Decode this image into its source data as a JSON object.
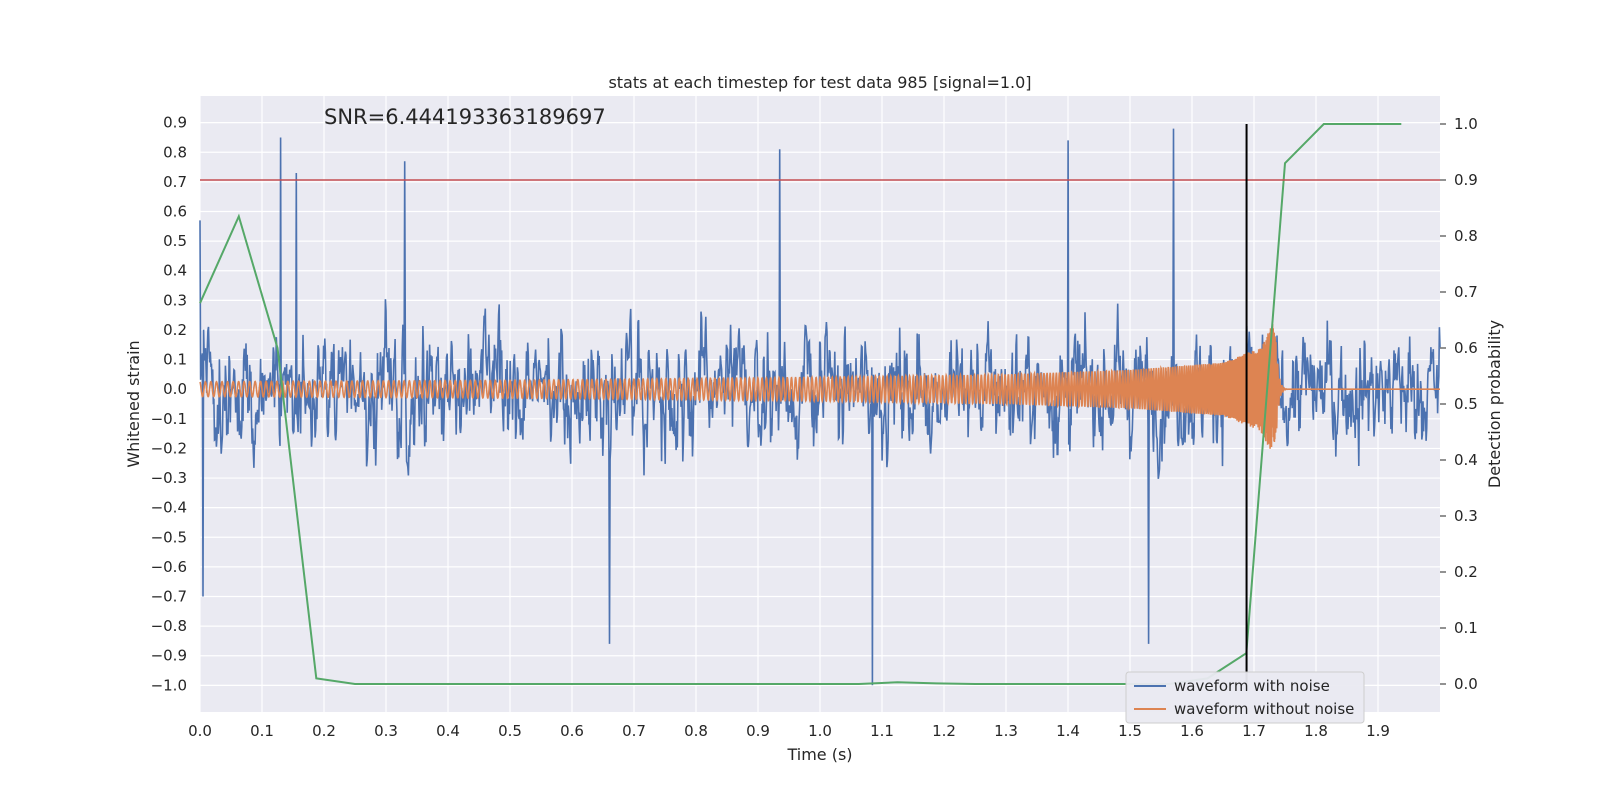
{
  "chart_data": {
    "type": "line",
    "title": "stats at each timestep for test data 985 [signal=1.0]",
    "xlabel": "Time (s)",
    "ylabel": "Whitened strain",
    "y2label": "Detection probability",
    "annotation": "SNR=6.444193363189697",
    "xlim": [
      0,
      2.0
    ],
    "ylim": [
      -1.09,
      0.99
    ],
    "y2lim": [
      -0.05,
      1.05
    ],
    "xticks": [
      0.0,
      0.1,
      0.2,
      0.3,
      0.4,
      0.5,
      0.6,
      0.7,
      0.8,
      0.9,
      1.0,
      1.1,
      1.2,
      1.3,
      1.4,
      1.5,
      1.6,
      1.7,
      1.8,
      1.9
    ],
    "xtick_labels": [
      "0.0",
      "0.1",
      "0.2",
      "0.3",
      "0.4",
      "0.5",
      "0.6",
      "0.7",
      "0.8",
      "0.9",
      "1.0",
      "1.1",
      "1.2",
      "1.3",
      "1.4",
      "1.5",
      "1.6",
      "1.7",
      "1.8",
      "1.9"
    ],
    "yticks": [
      0.9,
      0.8,
      0.7,
      0.6,
      0.5,
      0.4,
      0.3,
      0.2,
      0.1,
      0.0,
      -0.1,
      -0.2,
      -0.3,
      -0.4,
      -0.5,
      -0.6,
      -0.7,
      -0.8,
      -0.9,
      -1.0
    ],
    "ytick_labels": [
      "0.9",
      "0.8",
      "0.7",
      "0.6",
      "0.5",
      "0.4",
      "0.3",
      "0.2",
      "0.1",
      "0.0",
      "−0.1",
      "−0.2",
      "−0.3",
      "−0.4",
      "−0.5",
      "−0.6",
      "−0.7",
      "−0.8",
      "−0.9",
      "−1.0"
    ],
    "y2ticks": [
      1.0,
      0.9,
      0.8,
      0.7,
      0.6,
      0.5,
      0.4,
      0.3,
      0.2,
      0.1,
      0.0
    ],
    "y2tick_labels": [
      "1.0",
      "0.9",
      "0.8",
      "0.7",
      "0.6",
      "0.5",
      "0.4",
      "0.3",
      "0.2",
      "0.1",
      "0.0"
    ],
    "grid": true,
    "legend_position": "lower-right",
    "threshold_line": {
      "y2": 0.9,
      "color": "#c44e52"
    },
    "vertical_marker": {
      "x": 1.688,
      "y2_range": [
        -0.01,
        1.0
      ],
      "color": "#000000"
    },
    "series": [
      {
        "name": "waveform with noise",
        "color": "#4c72b0",
        "axis": "left",
        "description": "dense noisy time series",
        "x_range": [
          0,
          2.0
        ],
        "peaks": [
          {
            "x": 0.0,
            "y": 0.57
          },
          {
            "x": 0.005,
            "y": -0.7
          },
          {
            "x": 0.13,
            "y": 0.85
          },
          {
            "x": 0.155,
            "y": 0.73
          },
          {
            "x": 0.33,
            "y": 0.77
          },
          {
            "x": 0.66,
            "y": -0.86
          },
          {
            "x": 0.935,
            "y": 0.81
          },
          {
            "x": 1.085,
            "y": -1.0
          },
          {
            "x": 1.4,
            "y": 0.84
          },
          {
            "x": 1.53,
            "y": -0.86
          },
          {
            "x": 1.57,
            "y": 0.88
          }
        ]
      },
      {
        "name": "waveform without noise",
        "color": "#dd8452",
        "axis": "left",
        "description": "chirp: amplitude grows and frequency increases until merger near 1.73 s, then flat",
        "envelope": [
          {
            "x": 0.0,
            "amp": 0.025
          },
          {
            "x": 0.5,
            "amp": 0.03
          },
          {
            "x": 1.0,
            "amp": 0.04
          },
          {
            "x": 1.3,
            "amp": 0.05
          },
          {
            "x": 1.5,
            "amp": 0.065
          },
          {
            "x": 1.65,
            "amp": 0.09
          },
          {
            "x": 1.71,
            "amp": 0.14
          },
          {
            "x": 1.73,
            "amp": 0.22
          },
          {
            "x": 1.75,
            "amp": 0.0
          }
        ]
      },
      {
        "name": "detection probability",
        "color": "#55a868",
        "axis": "right",
        "x": [
          0.0,
          0.0625,
          0.125,
          0.1875,
          0.25,
          0.3125,
          0.375,
          0.4375,
          0.5,
          0.5625,
          0.625,
          0.6875,
          0.75,
          0.8125,
          0.875,
          0.9375,
          1.0,
          1.0625,
          1.125,
          1.1875,
          1.25,
          1.3125,
          1.375,
          1.4375,
          1.5,
          1.5625,
          1.625,
          1.6875,
          1.75,
          1.8125,
          1.875,
          1.9375
        ],
        "y": [
          0.68,
          0.835,
          0.6,
          0.01,
          0.0,
          0.0,
          0.0,
          0.0,
          0.0,
          0.0,
          0.0,
          0.0,
          0.0,
          0.0,
          0.0,
          0.0,
          0.0,
          0.0,
          0.003,
          0.001,
          0.0,
          0.0,
          0.0,
          0.0,
          0.0,
          0.0,
          0.01,
          0.055,
          0.93,
          1.0,
          1.0,
          1.0
        ]
      }
    ],
    "legend": [
      {
        "label": "waveform with noise",
        "color": "#4c72b0"
      },
      {
        "label": "waveform without noise",
        "color": "#dd8452"
      }
    ]
  }
}
